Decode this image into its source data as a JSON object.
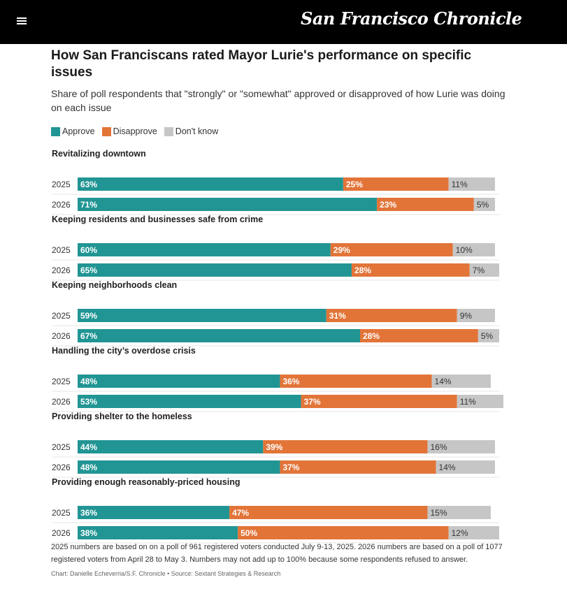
{
  "header": {
    "logo_text": "San Francisco Chronicle",
    "menu_icon": "hamburger-menu-icon"
  },
  "colors": {
    "approve": "#219594",
    "disapprove": "#e27438",
    "dont_know": "#c6c6c6",
    "header_bg": "#000000"
  },
  "chart_data": {
    "type": "bar",
    "orientation": "horizontal-stacked",
    "title": "How San Franciscans rated Mayor Lurie's performance on specific issues",
    "subtitle": "Share of poll respondents that \"strongly\" or \"somewhat\" approved or disapproved of how Lurie was doing on each issue",
    "legend": [
      "Approve",
      "Disapprove",
      "Don't know"
    ],
    "legend_position": "top-left",
    "unit": "%",
    "xlim": [
      0,
      100
    ],
    "groups": [
      {
        "issue": "Revitalizing downtown",
        "rows": [
          {
            "year": "2025",
            "approve": 63,
            "disapprove": 25,
            "dont_know": 11
          },
          {
            "year": "2026",
            "approve": 71,
            "disapprove": 23,
            "dont_know": 5
          }
        ]
      },
      {
        "issue": "Keeping residents and businesses safe from crime",
        "rows": [
          {
            "year": "2025",
            "approve": 60,
            "disapprove": 29,
            "dont_know": 10
          },
          {
            "year": "2026",
            "approve": 65,
            "disapprove": 28,
            "dont_know": 7
          }
        ]
      },
      {
        "issue": "Keeping neighborhoods clean",
        "rows": [
          {
            "year": "2025",
            "approve": 59,
            "disapprove": 31,
            "dont_know": 9
          },
          {
            "year": "2026",
            "approve": 67,
            "disapprove": 28,
            "dont_know": 5
          }
        ]
      },
      {
        "issue": "Handling the city’s overdose crisis",
        "rows": [
          {
            "year": "2025",
            "approve": 48,
            "disapprove": 36,
            "dont_know": 14
          },
          {
            "year": "2026",
            "approve": 53,
            "disapprove": 37,
            "dont_know": 11
          }
        ]
      },
      {
        "issue": "Providing shelter to the homeless",
        "rows": [
          {
            "year": "2025",
            "approve": 44,
            "disapprove": 39,
            "dont_know": 16
          },
          {
            "year": "2026",
            "approve": 48,
            "disapprove": 37,
            "dont_know": 14
          }
        ]
      },
      {
        "issue": "Providing enough reasonably-priced housing",
        "rows": [
          {
            "year": "2025",
            "approve": 36,
            "disapprove": 47,
            "dont_know": 15
          },
          {
            "year": "2026",
            "approve": 38,
            "disapprove": 50,
            "dont_know": 12
          }
        ]
      }
    ]
  },
  "footnote": "2025 numbers are based on on a poll of 961 registered voters conducted July 9-13, 2025. 2026 numbers are based on a poll of 1077 registered voters from April 28 to May 3. Numbers may not add up to 100% because some respondents refused to answer.",
  "credit": "Chart: Danielle Echeverria/S.F. Chronicle • Source: Sextant Strategies & Research"
}
